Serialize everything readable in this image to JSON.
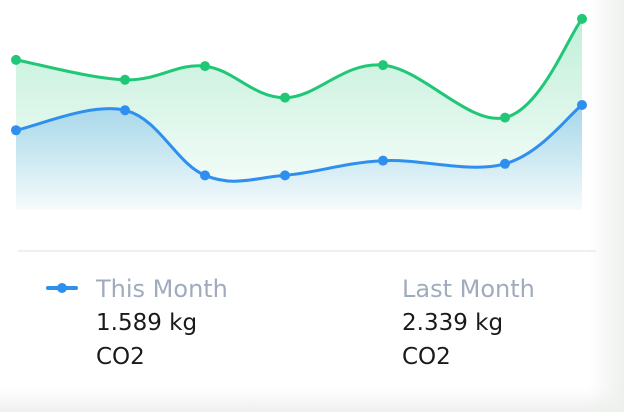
{
  "chart_data": {
    "type": "area",
    "title": "",
    "xlabel": "",
    "ylabel": "",
    "grid": false,
    "legend_position": "bottom",
    "series": [
      {
        "name": "This Month",
        "color": "#2f8fee",
        "values": [
          3.8,
          4.75,
          1.65,
          1.65,
          2.35,
          2.2,
          5.0
        ]
      },
      {
        "name": "Last Month",
        "color": "#20c777",
        "values": [
          7.15,
          6.2,
          6.85,
          5.35,
          6.9,
          4.4,
          9.1
        ]
      }
    ],
    "x": [
      1,
      2,
      3,
      4,
      5,
      6,
      7
    ],
    "ylim": [
      0,
      10
    ]
  },
  "legend": {
    "this_month": {
      "label": "This Month",
      "value": "1.589 kg",
      "unit": "CO2"
    },
    "last_month": {
      "label": "Last Month",
      "value": "2.339 kg",
      "unit": "CO2"
    }
  }
}
